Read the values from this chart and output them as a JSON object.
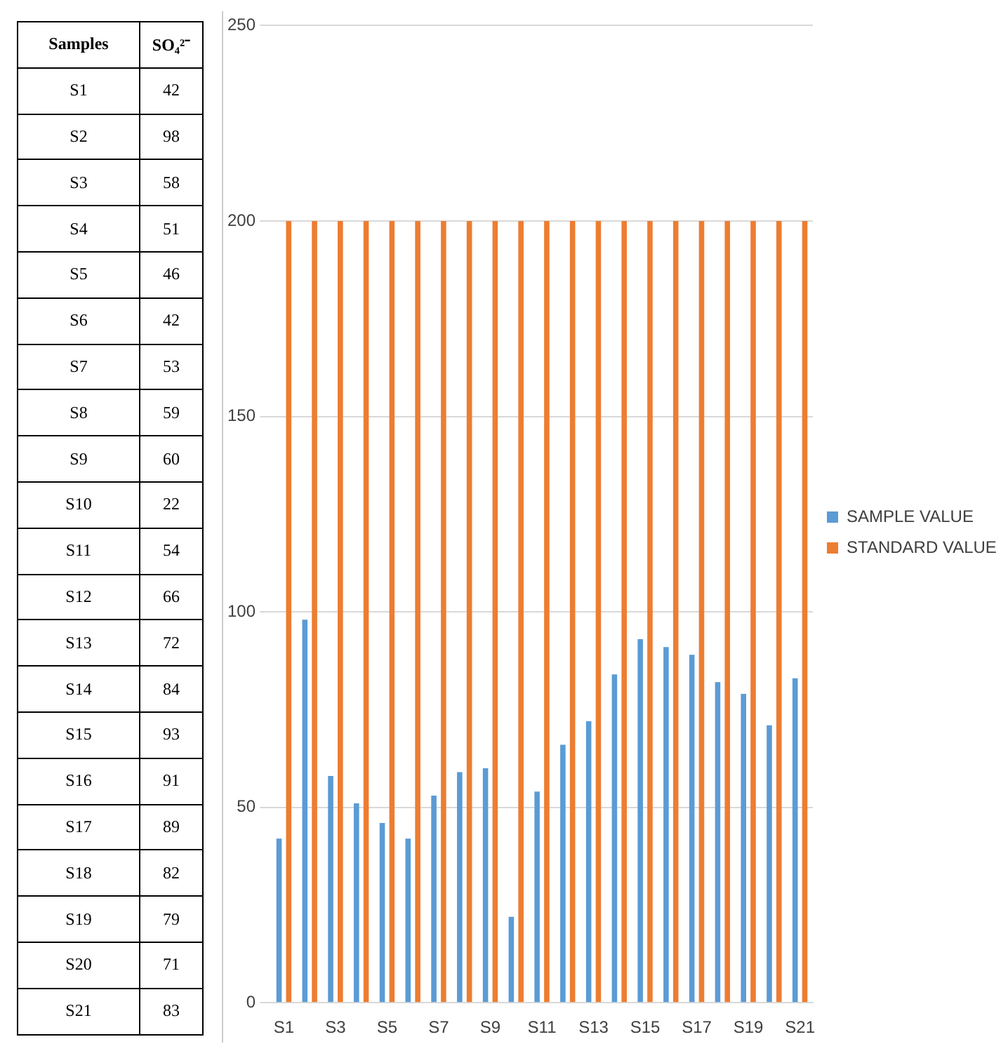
{
  "chart_data": [
    {
      "type": "other",
      "annotations": [
        "Samples",
        "SO₄²⁻"
      ],
      "categories": [
        "S1",
        "S2",
        "S3",
        "S4",
        "S5",
        "S6",
        "S7",
        "S8",
        "S9",
        "S10",
        "S11",
        "S12",
        "S13",
        "S14",
        "S15",
        "S16",
        "S17",
        "S18",
        "S19",
        "S20",
        "S21"
      ],
      "values": [
        42,
        98,
        58,
        51,
        46,
        42,
        53,
        59,
        60,
        22,
        54,
        66,
        72,
        84,
        93,
        91,
        89,
        82,
        79,
        71,
        83
      ],
      "data_labels": true
    },
    {
      "type": "bar",
      "categories": [
        "S1",
        null,
        "S3",
        null,
        "S5",
        null,
        "S7",
        null,
        "S9",
        null,
        "S11",
        null,
        "S13",
        null,
        "S15",
        null,
        "S17",
        null,
        "S19",
        null,
        "S21"
      ],
      "series": [
        {
          "name": "SAMPLE VALUE",
          "color": "#5b9bd5",
          "values": [
            42,
            98,
            58,
            51,
            46,
            42,
            53,
            59,
            60,
            22,
            54,
            66,
            72,
            84,
            93,
            91,
            89,
            82,
            79,
            71,
            83
          ]
        },
        {
          "name": "STANDARD VALUE",
          "color": "#ed7d31",
          "values": [
            200,
            200,
            200,
            200,
            200,
            200,
            200,
            200,
            200,
            200,
            200,
            200,
            200,
            200,
            200,
            200,
            200,
            200,
            200,
            200,
            200
          ]
        }
      ],
      "ylim": [
        0,
        250
      ],
      "yticks": [
        0,
        50,
        100,
        150,
        200,
        250
      ],
      "grid": "y",
      "legend": "right"
    }
  ]
}
